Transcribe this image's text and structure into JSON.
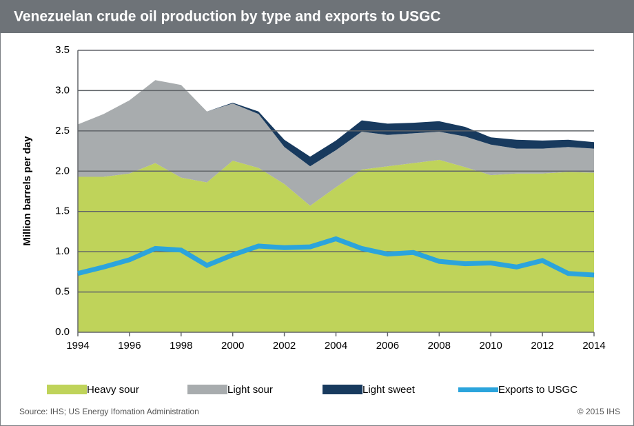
{
  "chart_data": {
    "type": "stacked_area_line",
    "title": "Venezuelan crude oil production by type and exports to USGC",
    "y_label": "Million barrels per day",
    "source": "Source: IHS; US Energy Ifomation Administration",
    "copyright": "© 2015 IHS",
    "x": [
      1994,
      1995,
      1996,
      1997,
      1998,
      1999,
      2000,
      2001,
      2002,
      2003,
      2004,
      2005,
      2006,
      2007,
      2008,
      2009,
      2010,
      2011,
      2012,
      2013,
      2014
    ],
    "series": [
      {
        "name": "Heavy sour",
        "color": "#bfd35a",
        "kind": "area",
        "values": [
          1.93,
          1.93,
          1.97,
          2.1,
          1.92,
          1.86,
          2.13,
          2.04,
          1.84,
          1.57,
          1.8,
          2.02,
          2.06,
          2.1,
          2.14,
          2.05,
          1.95,
          1.97,
          1.97,
          1.99,
          1.98
        ]
      },
      {
        "name": "Light sour",
        "color": "#a8acae",
        "kind": "area",
        "values": [
          0.65,
          0.78,
          0.91,
          1.03,
          1.15,
          0.88,
          0.71,
          0.67,
          0.46,
          0.49,
          0.46,
          0.47,
          0.39,
          0.37,
          0.35,
          0.38,
          0.38,
          0.31,
          0.31,
          0.31,
          0.3
        ]
      },
      {
        "name": "Light sweet",
        "color": "#183a5e",
        "kind": "area",
        "values": [
          0,
          0,
          0,
          0,
          0,
          0,
          0.01,
          0.03,
          0.09,
          0.12,
          0.12,
          0.14,
          0.14,
          0.13,
          0.13,
          0.12,
          0.09,
          0.11,
          0.1,
          0.09,
          0.08
        ]
      },
      {
        "name": "Exports to USGC",
        "color": "#2ba4dc",
        "kind": "line",
        "values": [
          0.73,
          0.81,
          0.9,
          1.04,
          1.02,
          0.83,
          0.96,
          1.07,
          1.05,
          1.06,
          1.16,
          1.04,
          0.97,
          0.99,
          0.88,
          0.85,
          0.86,
          0.81,
          0.89,
          0.73,
          0.71
        ]
      }
    ],
    "xlim": [
      1994,
      2014
    ],
    "xticks": [
      1994,
      1996,
      1998,
      2000,
      2002,
      2004,
      2006,
      2008,
      2010,
      2012,
      2014
    ],
    "ylim": [
      0,
      3.5
    ],
    "yticks": [
      {
        "value": 0,
        "label": "0.0"
      },
      {
        "value": 0.5,
        "label": "0.5"
      },
      {
        "value": 1,
        "label": "1.0"
      },
      {
        "value": 1.5,
        "label": "1.5"
      },
      {
        "value": 2,
        "label": "2.0"
      },
      {
        "value": 2.5,
        "label": "2.5"
      },
      {
        "value": 3,
        "label": "3.0"
      },
      {
        "value": 3.5,
        "label": "3.5"
      }
    ],
    "grid": true,
    "legend": "bottom"
  }
}
